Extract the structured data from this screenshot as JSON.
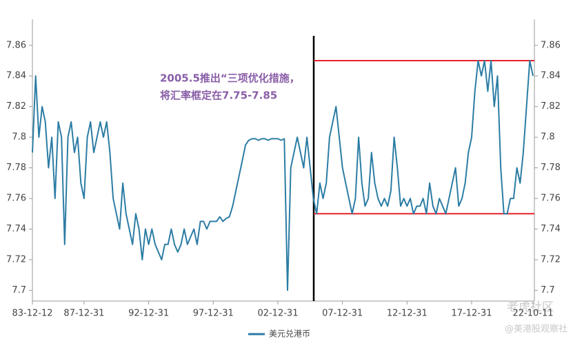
{
  "chart_data": {
    "type": "line",
    "annotation": [
      "2005.5推出“三项优化措施，",
      "将汇率框定在7.75-7.85"
    ],
    "bands": [
      7.85,
      7.75
    ],
    "band_color": "#e8202a",
    "categories": [
      "83-12-12",
      null,
      null,
      null,
      null,
      null,
      null,
      null,
      null,
      null,
      null,
      null,
      null,
      null,
      null,
      null,
      "87-12-31",
      null,
      null,
      null,
      null,
      null,
      null,
      null,
      null,
      null,
      null,
      null,
      null,
      null,
      null,
      null,
      null,
      null,
      null,
      null,
      "92-12-31",
      null,
      null,
      null,
      null,
      null,
      null,
      null,
      null,
      null,
      null,
      null,
      null,
      null,
      null,
      null,
      null,
      null,
      null,
      null,
      "97-12-31",
      null,
      null,
      null,
      null,
      null,
      null,
      null,
      null,
      null,
      null,
      null,
      null,
      null,
      null,
      null,
      null,
      null,
      null,
      null,
      "02-12-31",
      null,
      null,
      null,
      null,
      null,
      null,
      null,
      null,
      null,
      null,
      null,
      null,
      null,
      null,
      null,
      null,
      null,
      null,
      null,
      "07-12-31",
      null,
      null,
      null,
      null,
      null,
      null,
      null,
      null,
      null,
      null,
      null,
      null,
      null,
      null,
      null,
      null,
      null,
      null,
      null,
      "12-12-31",
      null,
      null,
      null,
      null,
      null,
      null,
      null,
      null,
      null,
      null,
      null,
      null,
      null,
      null,
      null,
      null,
      null,
      null,
      null,
      "17-12-31",
      null,
      null,
      null,
      null,
      null,
      null,
      null,
      null,
      null,
      null,
      null,
      null,
      null,
      null,
      null,
      null,
      null,
      null,
      "22-10-11"
    ],
    "series": [
      {
        "name": "美元兑港币",
        "color": "#2b7ca4",
        "values": [
          7.79,
          7.84,
          7.8,
          7.82,
          7.81,
          7.78,
          7.8,
          7.76,
          7.81,
          7.8,
          7.73,
          7.8,
          7.81,
          7.79,
          7.8,
          7.77,
          7.76,
          7.8,
          7.81,
          7.79,
          7.8,
          7.81,
          7.8,
          7.81,
          7.79,
          7.76,
          7.75,
          7.74,
          7.77,
          7.75,
          7.74,
          7.73,
          7.75,
          7.74,
          7.72,
          7.74,
          7.73,
          7.74,
          7.73,
          7.725,
          7.72,
          7.73,
          7.73,
          7.74,
          7.73,
          7.725,
          7.73,
          7.74,
          7.73,
          7.735,
          7.74,
          7.73,
          7.745,
          7.745,
          7.74,
          7.745,
          7.745,
          7.745,
          7.748,
          7.745,
          7.747,
          7.748,
          7.755,
          7.765,
          7.775,
          7.785,
          7.795,
          7.798,
          7.799,
          7.799,
          7.798,
          7.799,
          7.799,
          7.798,
          7.799,
          7.799,
          7.799,
          7.798,
          7.799,
          7.7,
          7.78,
          7.79,
          7.8,
          7.79,
          7.78,
          7.8,
          7.78,
          7.76,
          7.75,
          7.77,
          7.76,
          7.77,
          7.8,
          7.81,
          7.82,
          7.8,
          7.78,
          7.77,
          7.76,
          7.75,
          7.76,
          7.8,
          7.77,
          7.755,
          7.76,
          7.79,
          7.77,
          7.76,
          7.755,
          7.76,
          7.755,
          7.765,
          7.8,
          7.78,
          7.755,
          7.76,
          7.755,
          7.76,
          7.75,
          7.755,
          7.755,
          7.76,
          7.75,
          7.77,
          7.755,
          7.75,
          7.76,
          7.755,
          7.75,
          7.76,
          7.77,
          7.78,
          7.755,
          7.76,
          7.77,
          7.79,
          7.8,
          7.83,
          7.85,
          7.84,
          7.85,
          7.83,
          7.85,
          7.82,
          7.84,
          7.78,
          7.75,
          7.75,
          7.76,
          7.76,
          7.78,
          7.77,
          7.79,
          7.82,
          7.85,
          7.84
        ]
      }
    ],
    "ylim": [
      7.693,
      7.877
    ],
    "yticks": [
      7.7,
      7.72,
      7.74,
      7.76,
      7.78,
      7.8,
      7.82,
      7.84,
      7.86
    ],
    "y2lim": [
      7.693,
      7.877
    ],
    "y2ticks": [
      7.7,
      7.72,
      7.74,
      7.76,
      7.78,
      7.8,
      7.82,
      7.84,
      7.86
    ],
    "grid": false,
    "legend": "bottom",
    "watermark": [
      "老虎社区",
      "@美港股观察社"
    ]
  }
}
